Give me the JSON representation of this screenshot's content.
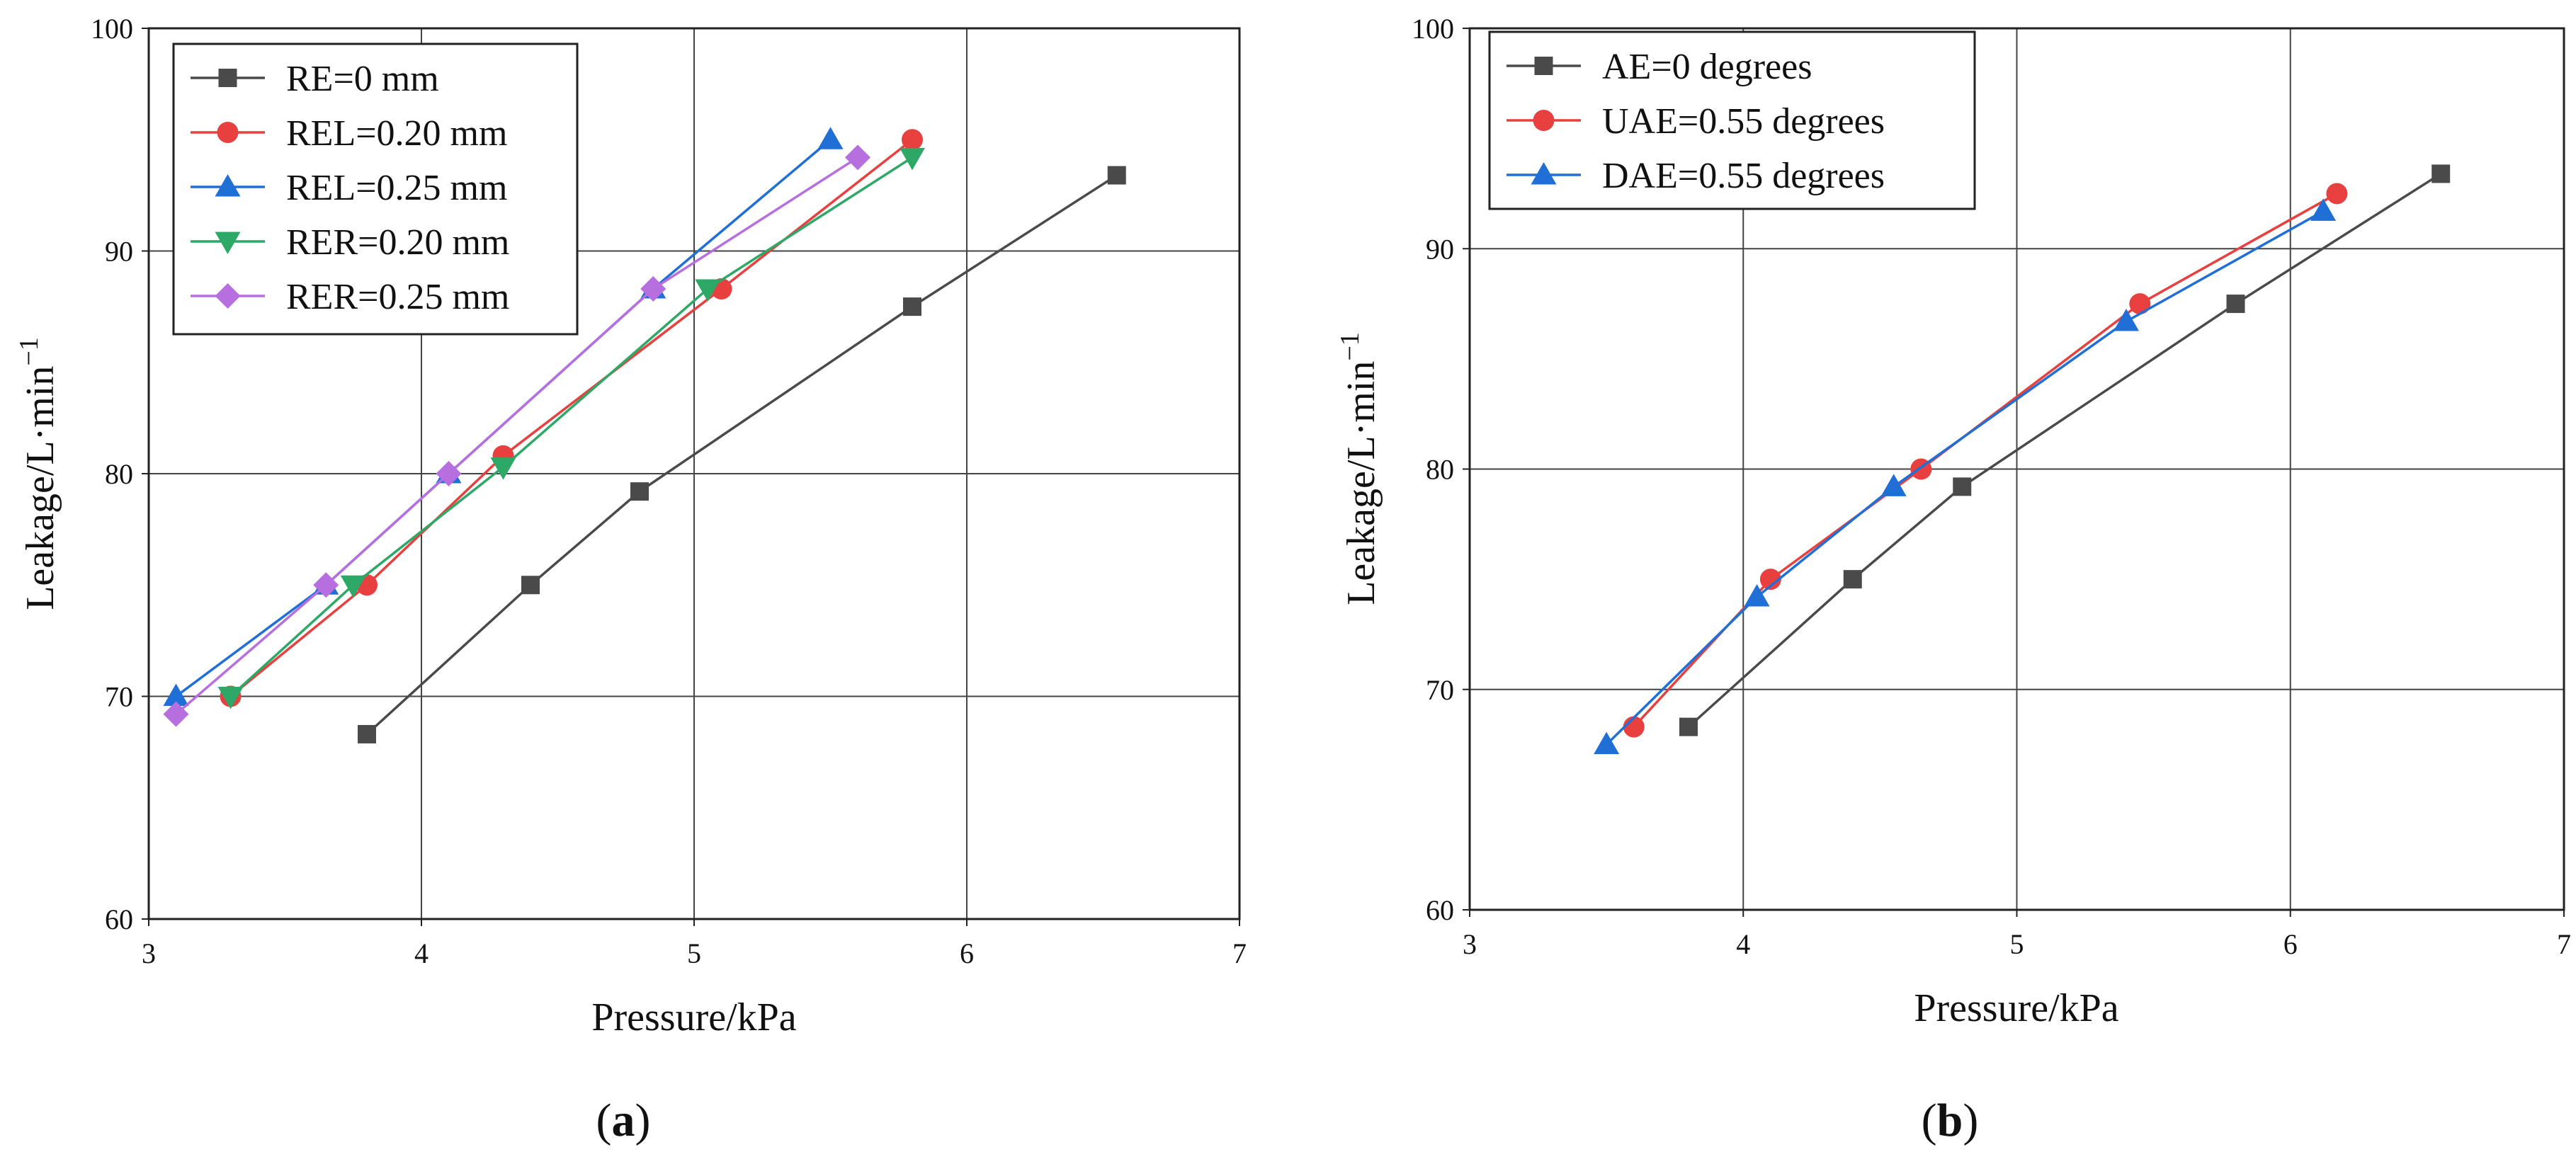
{
  "chart_data": [
    {
      "panel_label": "(a)",
      "type": "line",
      "title": "",
      "xlabel": "Pressure/kPa",
      "ylabel": "Leakage/L·min",
      "ylabel_unit_superscript": "−1",
      "xlim": [
        3,
        7
      ],
      "ylim": [
        60,
        100
      ],
      "x_ticks": [
        "3",
        "4",
        "5",
        "6",
        "7"
      ],
      "y_ticks": [
        "60",
        "70",
        "80",
        "90",
        "100"
      ],
      "grid": true,
      "legend_position": "top-left",
      "series": [
        {
          "name": "RE=0 mm",
          "color": "#4a4a4a",
          "marker": "square",
          "x": [
            3.8,
            4.4,
            4.8,
            5.8,
            6.55
          ],
          "y": [
            68.3,
            75.0,
            79.2,
            87.5,
            93.4
          ]
        },
        {
          "name": "REL=0.20 mm",
          "color": "#e8403f",
          "marker": "circle",
          "x": [
            3.3,
            3.8,
            4.3,
            5.1,
            5.8
          ],
          "y": [
            70.0,
            75.0,
            80.8,
            88.3,
            95.0
          ]
        },
        {
          "name": "REL=0.25 mm",
          "color": "#1f6fd6",
          "marker": "triangle-up",
          "x": [
            3.1,
            3.65,
            4.1,
            4.85,
            5.5
          ],
          "y": [
            70.0,
            75.0,
            80.0,
            88.3,
            95.0
          ]
        },
        {
          "name": "RER=0.20 mm",
          "color": "#2ea866",
          "marker": "triangle-down",
          "x": [
            3.3,
            3.75,
            4.3,
            5.05,
            5.8
          ],
          "y": [
            70.0,
            75.0,
            80.3,
            88.3,
            94.2
          ]
        },
        {
          "name": "RER=0.25 mm",
          "color": "#b76fe0",
          "marker": "diamond",
          "x": [
            3.1,
            3.65,
            4.1,
            4.85,
            5.6
          ],
          "y": [
            69.2,
            75.0,
            80.0,
            88.3,
            94.2
          ]
        }
      ]
    },
    {
      "panel_label": "(b)",
      "type": "line",
      "title": "",
      "xlabel": "Pressure/kPa",
      "ylabel": "Leakage/L·min",
      "ylabel_unit_superscript": "−1",
      "xlim": [
        3,
        7
      ],
      "ylim": [
        60,
        100
      ],
      "x_ticks": [
        "3",
        "4",
        "5",
        "6",
        "7"
      ],
      "y_ticks": [
        "60",
        "70",
        "80",
        "90",
        "100"
      ],
      "grid": true,
      "legend_position": "top-left",
      "series": [
        {
          "name": "AE=0 degrees",
          "color": "#4a4a4a",
          "marker": "square",
          "x": [
            3.8,
            4.4,
            4.8,
            5.8,
            6.55
          ],
          "y": [
            68.3,
            75.0,
            79.2,
            87.5,
            93.4
          ]
        },
        {
          "name": "UAE=0.55 degrees",
          "color": "#e8403f",
          "marker": "circle",
          "x": [
            3.6,
            4.1,
            4.65,
            5.45,
            6.17
          ],
          "y": [
            68.3,
            75.0,
            80.0,
            87.5,
            92.5
          ]
        },
        {
          "name": "DAE=0.55 degrees",
          "color": "#1f6fd6",
          "marker": "triangle-up",
          "x": [
            3.5,
            4.05,
            4.55,
            5.4,
            6.12
          ],
          "y": [
            67.5,
            74.2,
            79.2,
            86.7,
            91.7
          ]
        }
      ]
    }
  ]
}
